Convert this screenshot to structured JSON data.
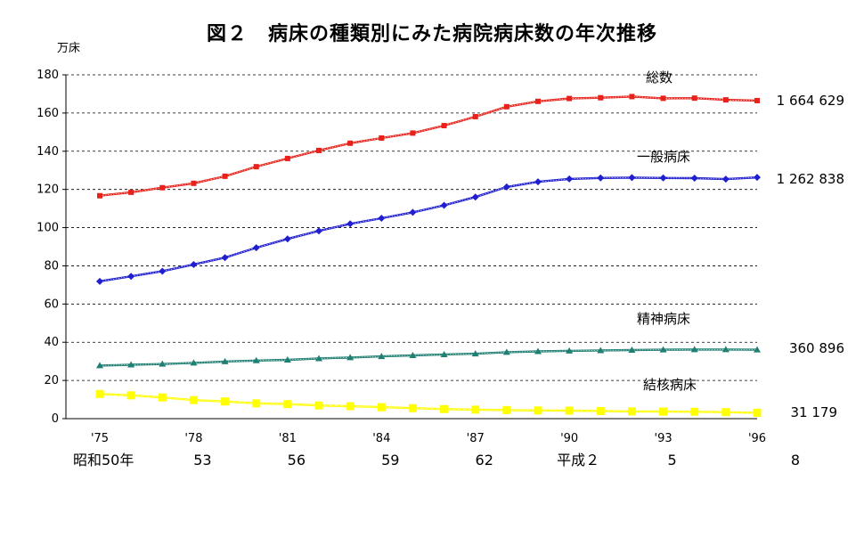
{
  "chart_data": {
    "type": "line",
    "title": "図２　病床の種類別にみた病院病床数の年次推移",
    "ylabel": "万床",
    "ylim": [
      0,
      180
    ],
    "yticks": [
      0,
      20,
      40,
      60,
      80,
      100,
      120,
      140,
      160,
      180
    ],
    "x": [
      1975,
      1976,
      1977,
      1978,
      1979,
      1980,
      1981,
      1982,
      1983,
      1984,
      1985,
      1986,
      1987,
      1988,
      1989,
      1990,
      1991,
      1992,
      1993,
      1994,
      1995,
      1996
    ],
    "xtick_labels": [
      {
        "x": 1975,
        "label": "'75"
      },
      {
        "x": 1978,
        "label": "'78"
      },
      {
        "x": 1981,
        "label": "'81"
      },
      {
        "x": 1984,
        "label": "'84"
      },
      {
        "x": 1987,
        "label": "'87"
      },
      {
        "x": 1990,
        "label": "'90"
      },
      {
        "x": 1993,
        "label": "'93"
      },
      {
        "x": 1996,
        "label": "'96"
      }
    ],
    "era_labels": [
      {
        "x": 1975,
        "label": "昭和50年"
      },
      {
        "x": 1978,
        "label": "53"
      },
      {
        "x": 1981,
        "label": "56"
      },
      {
        "x": 1984,
        "label": "59"
      },
      {
        "x": 1987,
        "label": "62"
      },
      {
        "x": 1990,
        "label": "平成２"
      },
      {
        "x": 1993,
        "label": "5"
      },
      {
        "x": 1996,
        "label": "8"
      }
    ],
    "grid": true,
    "series": [
      {
        "name": "総数",
        "color": "#e8221b",
        "marker": "square",
        "end_value": "1 664 629",
        "values": [
          116.7,
          118.5,
          120.9,
          123.2,
          126.9,
          131.9,
          136.2,
          140.4,
          144.2,
          146.9,
          149.5,
          153.4,
          158.1,
          163.3,
          166.1,
          167.6,
          168.0,
          168.6,
          167.7,
          167.8,
          166.9,
          166.5
        ]
      },
      {
        "name": "一般病床",
        "color": "#1f1fcf",
        "marker": "diamond",
        "end_value": "1 262 838",
        "values": [
          71.9,
          74.5,
          77.2,
          80.7,
          84.3,
          89.5,
          94.1,
          98.3,
          102.0,
          104.9,
          108.0,
          111.7,
          116.0,
          121.3,
          124.0,
          125.5,
          126.0,
          126.2,
          126.0,
          125.9,
          125.4,
          126.3
        ]
      },
      {
        "name": "精神病床",
        "color": "#1f7f73",
        "marker": "triangle",
        "end_value": "360 896",
        "values": [
          27.8,
          28.2,
          28.6,
          29.2,
          29.9,
          30.4,
          30.8,
          31.5,
          32.0,
          32.6,
          33.1,
          33.6,
          34.0,
          34.8,
          35.2,
          35.5,
          35.7,
          35.9,
          36.1,
          36.2,
          36.2,
          36.1
        ]
      },
      {
        "name": "結核病床",
        "color": "#ffff00",
        "marker": "square",
        "end_value": "31 179",
        "values": [
          12.9,
          12.2,
          11.1,
          9.7,
          9.0,
          8.0,
          7.6,
          6.9,
          6.5,
          6.0,
          5.5,
          5.0,
          4.7,
          4.5,
          4.3,
          4.2,
          4.0,
          3.8,
          3.7,
          3.6,
          3.4,
          3.1
        ]
      }
    ]
  }
}
